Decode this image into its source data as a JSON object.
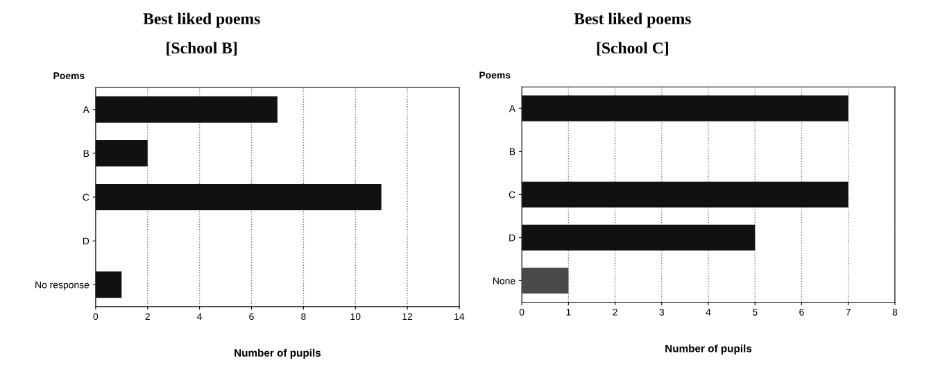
{
  "chart_data": [
    {
      "type": "bar",
      "orientation": "horizontal",
      "title": "Best liked poems",
      "subtitle": "[School B]",
      "ylabel": "Poems",
      "xlabel": "Number of pupils",
      "categories": [
        "A",
        "B",
        "C",
        "D",
        "No response"
      ],
      "values": [
        7,
        2,
        11,
        0,
        1
      ],
      "colors": [
        "#111111",
        "#111111",
        "#111111",
        "#111111",
        "#111111"
      ],
      "xlim": [
        0,
        14
      ],
      "xticks": [
        0,
        2,
        4,
        6,
        8,
        10,
        12,
        14
      ],
      "grid": "x"
    },
    {
      "type": "bar",
      "orientation": "horizontal",
      "title": "Best liked poems",
      "subtitle": "[School C]",
      "ylabel": "Poems",
      "xlabel": "Number of pupils",
      "categories": [
        "A",
        "B",
        "C",
        "D",
        "None"
      ],
      "values": [
        7,
        0,
        7,
        5,
        1
      ],
      "colors": [
        "#111111",
        "#111111",
        "#111111",
        "#111111",
        "#4a4a4a"
      ],
      "xlim": [
        0,
        8
      ],
      "xticks": [
        0,
        1,
        2,
        3,
        4,
        5,
        6,
        7,
        8
      ],
      "grid": "x"
    }
  ]
}
